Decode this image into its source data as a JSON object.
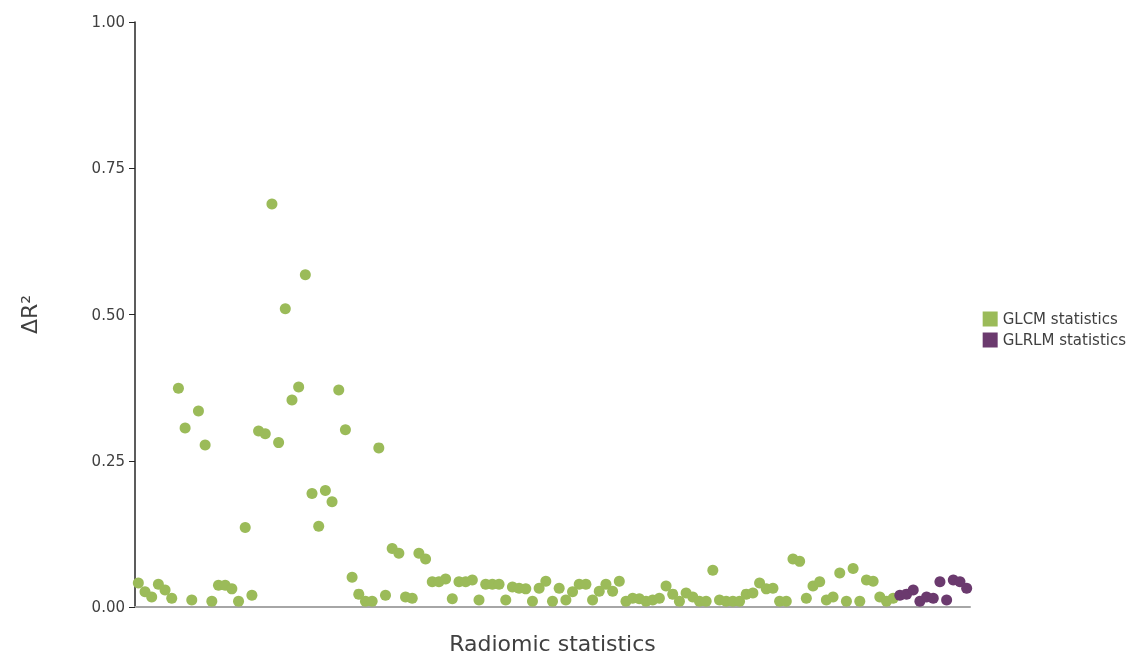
{
  "chart_data": {
    "type": "scatter",
    "xlabel": "Radiomic statistics",
    "ylabel": "ΔR²",
    "categories": [
      null,
      null,
      null,
      null,
      null,
      null,
      null,
      null,
      null,
      null,
      null,
      null,
      null,
      null,
      null,
      null,
      null,
      null,
      null,
      null,
      null,
      null,
      null,
      null,
      null,
      null,
      null,
      null,
      null,
      null,
      null,
      null,
      null,
      null,
      null,
      null,
      null,
      null,
      null,
      null,
      null,
      null,
      null,
      null,
      null,
      null,
      null,
      null,
      null,
      null,
      null,
      null,
      null,
      null,
      null,
      null,
      null,
      null,
      null,
      null,
      null,
      null,
      null,
      null,
      null,
      null,
      null,
      null,
      null,
      null,
      null,
      null,
      null,
      null,
      null,
      null,
      null,
      null,
      null,
      null,
      null,
      null,
      null,
      null,
      null,
      null,
      null,
      null,
      null,
      null,
      null,
      null,
      null,
      null,
      null,
      null,
      null,
      null,
      null,
      null,
      null,
      null,
      null,
      null,
      null,
      null,
      null,
      null,
      null,
      null,
      null,
      null,
      null,
      null,
      null,
      null,
      null,
      null,
      null,
      null,
      null,
      null,
      null,
      null,
      null
    ],
    "ylim": [
      0,
      1
    ],
    "yticks": [
      {
        "value": 0,
        "label": "0.00"
      },
      {
        "value": 0.25,
        "label": "0.25"
      },
      {
        "value": 0.5,
        "label": "0.50"
      },
      {
        "value": 0.75,
        "label": "0.75"
      },
      {
        "value": 1,
        "label": "1.00"
      }
    ],
    "tick_labels": "y",
    "grid": false,
    "legend": "right",
    "marker": "circle",
    "series": [
      {
        "name": "GLCM statistics",
        "color": "#9bbb59",
        "values": [
          0.041,
          0.026,
          0.017,
          0.039,
          0.029,
          0.015,
          0.374,
          0.306,
          0.012,
          0.335,
          0.277,
          0.01,
          0.037,
          0.037,
          0.031,
          0.01,
          0.136,
          0.02,
          0.301,
          0.296,
          0.689,
          0.281,
          0.51,
          0.354,
          0.376,
          0.568,
          0.194,
          0.138,
          0.199,
          0.18,
          0.371,
          0.303,
          0.051,
          0.022,
          0.01,
          0.01,
          0.272,
          0.02,
          0.1,
          0.092,
          0.017,
          0.015,
          0.092,
          0.082,
          0.043,
          0.043,
          0.048,
          0.014,
          0.043,
          0.043,
          0.046,
          0.012,
          0.039,
          0.039,
          0.039,
          0.012,
          0.034,
          0.032,
          0.031,
          0.01,
          0.032,
          0.044,
          0.01,
          0.032,
          0.012,
          0.026,
          0.039,
          0.039,
          0.012,
          0.027,
          0.039,
          0.027,
          0.044,
          0.01,
          0.015,
          0.014,
          0.01,
          0.012,
          0.015,
          0.036,
          0.022,
          0.01,
          0.024,
          0.017,
          0.01,
          0.01,
          0.063,
          0.012,
          0.01,
          0.01,
          0.01,
          0.022,
          0.024,
          0.041,
          0.031,
          0.032,
          0.01,
          0.01,
          0.082,
          0.078,
          0.015,
          0.036,
          0.043,
          0.012,
          0.017,
          0.058,
          0.01,
          0.066,
          0.01,
          0.046,
          0.044,
          0.017,
          0.01,
          0.015,
          null,
          null,
          null,
          null,
          null,
          null,
          null,
          null,
          null,
          null,
          null
        ]
      },
      {
        "name": "GLRLM statistics",
        "color": "#6b3a6e",
        "values": [
          null,
          null,
          null,
          null,
          null,
          null,
          null,
          null,
          null,
          null,
          null,
          null,
          null,
          null,
          null,
          null,
          null,
          null,
          null,
          null,
          null,
          null,
          null,
          null,
          null,
          null,
          null,
          null,
          null,
          null,
          null,
          null,
          null,
          null,
          null,
          null,
          null,
          null,
          null,
          null,
          null,
          null,
          null,
          null,
          null,
          null,
          null,
          null,
          null,
          null,
          null,
          null,
          null,
          null,
          null,
          null,
          null,
          null,
          null,
          null,
          null,
          null,
          null,
          null,
          null,
          null,
          null,
          null,
          null,
          null,
          null,
          null,
          null,
          null,
          null,
          null,
          null,
          null,
          null,
          null,
          null,
          null,
          null,
          null,
          null,
          null,
          null,
          null,
          null,
          null,
          null,
          null,
          null,
          null,
          null,
          null,
          null,
          null,
          null,
          null,
          null,
          null,
          null,
          null,
          null,
          null,
          null,
          null,
          null,
          null,
          null,
          null,
          null,
          null,
          0.02,
          0.022,
          0.029,
          0.01,
          0.017,
          0.015,
          0.043,
          0.012,
          0.046,
          0.043,
          0.032
        ]
      }
    ]
  }
}
